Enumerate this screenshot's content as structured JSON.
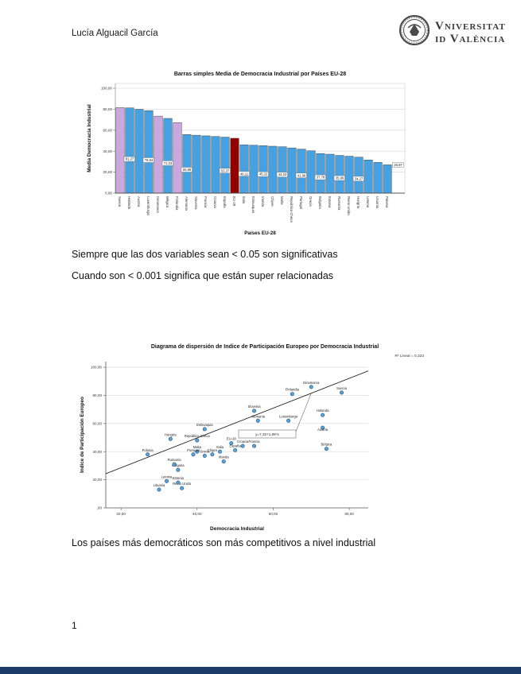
{
  "header": {
    "author": "Lucía Alguacil García",
    "logo_line1": "Vniversitat",
    "logo_line2": "id València"
  },
  "notes": {
    "note1": "Siempre que las dos variables sean < 0.05 son significativas",
    "note2": "Cuando son < 0.001 significa que están super relacionadas",
    "note3": "Los países más democráticos son más competitivos a nivel industrial"
  },
  "page_number": "1",
  "colors": {
    "bar_blue": "#47A0E0",
    "bar_purple": "#C9A8E0",
    "bar_red": "#930000",
    "point_fill": "#56A2DD",
    "point_stroke": "#26567E",
    "grid": "#D8D8D8",
    "axis": "#555555",
    "bottom_strip": "#1A3C66"
  },
  "chart_data": [
    {
      "type": "bar",
      "title": "Barras simples Media de Democracia Industrial por Países EU-28",
      "xlabel": "Países EU-28",
      "ylabel": "Media Democracia Industrial",
      "ylim": [
        0,
        100
      ],
      "yticks": [
        {
          "value": 0,
          "label": "0,00"
        },
        {
          "value": 20,
          "label": "20,00"
        },
        {
          "value": 40,
          "label": "40,00"
        },
        {
          "value": 60,
          "label": "60,00"
        },
        {
          "value": 80,
          "label": "80,00"
        },
        {
          "value": 100,
          "label": "100,00"
        }
      ],
      "grid": true,
      "legend": "none",
      "bars": [
        {
          "name": "Suecia",
          "value": 81.5,
          "color": "purple"
        },
        {
          "name": "Holanda",
          "value": 81.27,
          "color": "blue",
          "label": "81,27"
        },
        {
          "name": "Austria",
          "value": 79.9,
          "color": "blue"
        },
        {
          "name": "Luxemburgo",
          "value": 78.64,
          "color": "blue",
          "label": "78,64"
        },
        {
          "name": "Dinamarca",
          "value": 73.4,
          "color": "purple"
        },
        {
          "name": "Bélgica",
          "value": 71.23,
          "color": "blue",
          "label": "71,23"
        },
        {
          "name": "Finlandia",
          "value": 67.2,
          "color": "purple"
        },
        {
          "name": "Alemania",
          "value": 55.89,
          "color": "blue",
          "label": "55,89"
        },
        {
          "name": "Slovenia",
          "value": 55.2,
          "color": "blue"
        },
        {
          "name": "Francia",
          "value": 54.6,
          "color": "blue"
        },
        {
          "name": "Croacia",
          "value": 54.0,
          "color": "blue"
        },
        {
          "name": "España",
          "value": 53.37,
          "color": "blue",
          "label": "53,37"
        },
        {
          "name": "EU-28",
          "value": 52.3,
          "color": "red"
        },
        {
          "name": "Italia",
          "value": 46.11,
          "color": "blue",
          "label": "46,11"
        },
        {
          "name": "Eslovaquia",
          "value": 45.7,
          "color": "blue"
        },
        {
          "name": "Irlanda",
          "value": 45.22,
          "color": "blue",
          "label": "45,22"
        },
        {
          "name": "Chipre",
          "value": 44.7,
          "color": "blue"
        },
        {
          "name": "Malta",
          "value": 44.23,
          "color": "blue",
          "label": "44,23"
        },
        {
          "name": "República Checa",
          "value": 43.1,
          "color": "blue"
        },
        {
          "name": "Portugal",
          "value": 41.96,
          "color": "blue",
          "label": "41,96"
        },
        {
          "name": "Grecia",
          "value": 40.4,
          "color": "blue"
        },
        {
          "name": "Bulgaria",
          "value": 37.78,
          "color": "blue",
          "label": "37,78"
        },
        {
          "name": "Estonia",
          "value": 37.1,
          "color": "blue"
        },
        {
          "name": "Rumanía",
          "value": 35.96,
          "color": "blue",
          "label": "35,96"
        },
        {
          "name": "Reino Unido",
          "value": 35.2,
          "color": "blue"
        },
        {
          "name": "Hungría",
          "value": 34.27,
          "color": "blue",
          "label": "34,27"
        },
        {
          "name": "Letonia",
          "value": 31.6,
          "color": "blue"
        },
        {
          "name": "Lituania",
          "value": 29.3,
          "color": "blue"
        },
        {
          "name": "Polonia",
          "value": 26.97,
          "color": "blue",
          "label": "26,97",
          "label_outside": true
        }
      ]
    },
    {
      "type": "scatter",
      "title": "Diagrama de dispersión de Indice de Participación Europeo por Democracia Industrial",
      "xlabel": "Democracia Industrial",
      "ylabel": "Indice de Participación Europeo",
      "r2_label": "R² Lineal = 0,323",
      "equation_label": "y=7,32+1,06*x",
      "regression": {
        "intercept": 7.32,
        "slope": 1.06
      },
      "xlim": [
        16,
        85
      ],
      "ylim": [
        0,
        104
      ],
      "xticks": [
        {
          "value": 20,
          "label": "20,00"
        },
        {
          "value": 40,
          "label": "40,00"
        },
        {
          "value": 60,
          "label": "60,00"
        },
        {
          "value": 80,
          "label": "80,00"
        }
      ],
      "yticks": [
        {
          "value": 0,
          "label": ",00"
        },
        {
          "value": 20,
          "label": "20,00"
        },
        {
          "value": 40,
          "label": "40,00"
        },
        {
          "value": 60,
          "label": "60,00"
        },
        {
          "value": 80,
          "label": "80,00"
        },
        {
          "value": 100,
          "label": "100,00"
        }
      ],
      "points": [
        {
          "label": "Polonia",
          "x": 27,
          "y": 38
        },
        {
          "label": "Hungría",
          "x": 33,
          "y": 49
        },
        {
          "label": "Lituania",
          "x": 30,
          "y": 13
        },
        {
          "label": "Letonia",
          "x": 32,
          "y": 19
        },
        {
          "label": "Reino Unido",
          "x": 36,
          "y": 14
        },
        {
          "label": "Estonia",
          "x": 35,
          "y": 18
        },
        {
          "label": "Bulgaria",
          "x": 35,
          "y": 27
        },
        {
          "label": "Rumanía",
          "x": 34,
          "y": 31
        },
        {
          "label": "Malta",
          "x": 40,
          "y": 40
        },
        {
          "label": "Portugal",
          "x": 39,
          "y": 38
        },
        {
          "label": "Grecia",
          "x": 42,
          "y": 37
        },
        {
          "label": "Chipre",
          "x": 44,
          "y": 38
        },
        {
          "label": "Irlanda",
          "x": 47,
          "y": 33
        },
        {
          "label": "Italia",
          "x": 46,
          "y": 40
        },
        {
          "label": "España",
          "x": 50,
          "y": 41
        },
        {
          "label": "Francia",
          "x": 55,
          "y": 44
        },
        {
          "label": "Croacia",
          "x": 52,
          "y": 44
        },
        {
          "label": "EU-28",
          "x": 49,
          "y": 46
        },
        {
          "label": "República Checa",
          "x": 40,
          "y": 48
        },
        {
          "label": "Eslovaquia",
          "x": 42,
          "y": 56
        },
        {
          "label": "Slovenia",
          "x": 55,
          "y": 69
        },
        {
          "label": "Alemania",
          "x": 56,
          "y": 62
        },
        {
          "label": "Luxemburgo",
          "x": 64,
          "y": 62
        },
        {
          "label": "Holanda",
          "x": 73,
          "y": 66
        },
        {
          "label": "Austria",
          "x": 73,
          "y": 57,
          "dy": 8
        },
        {
          "label": "Bélgica",
          "x": 74,
          "y": 42
        },
        {
          "label": "Dinamarca",
          "x": 70,
          "y": 86
        },
        {
          "label": "Finlandia",
          "x": 65,
          "y": 81
        },
        {
          "label": "Suecia",
          "x": 78,
          "y": 82
        }
      ]
    }
  ]
}
